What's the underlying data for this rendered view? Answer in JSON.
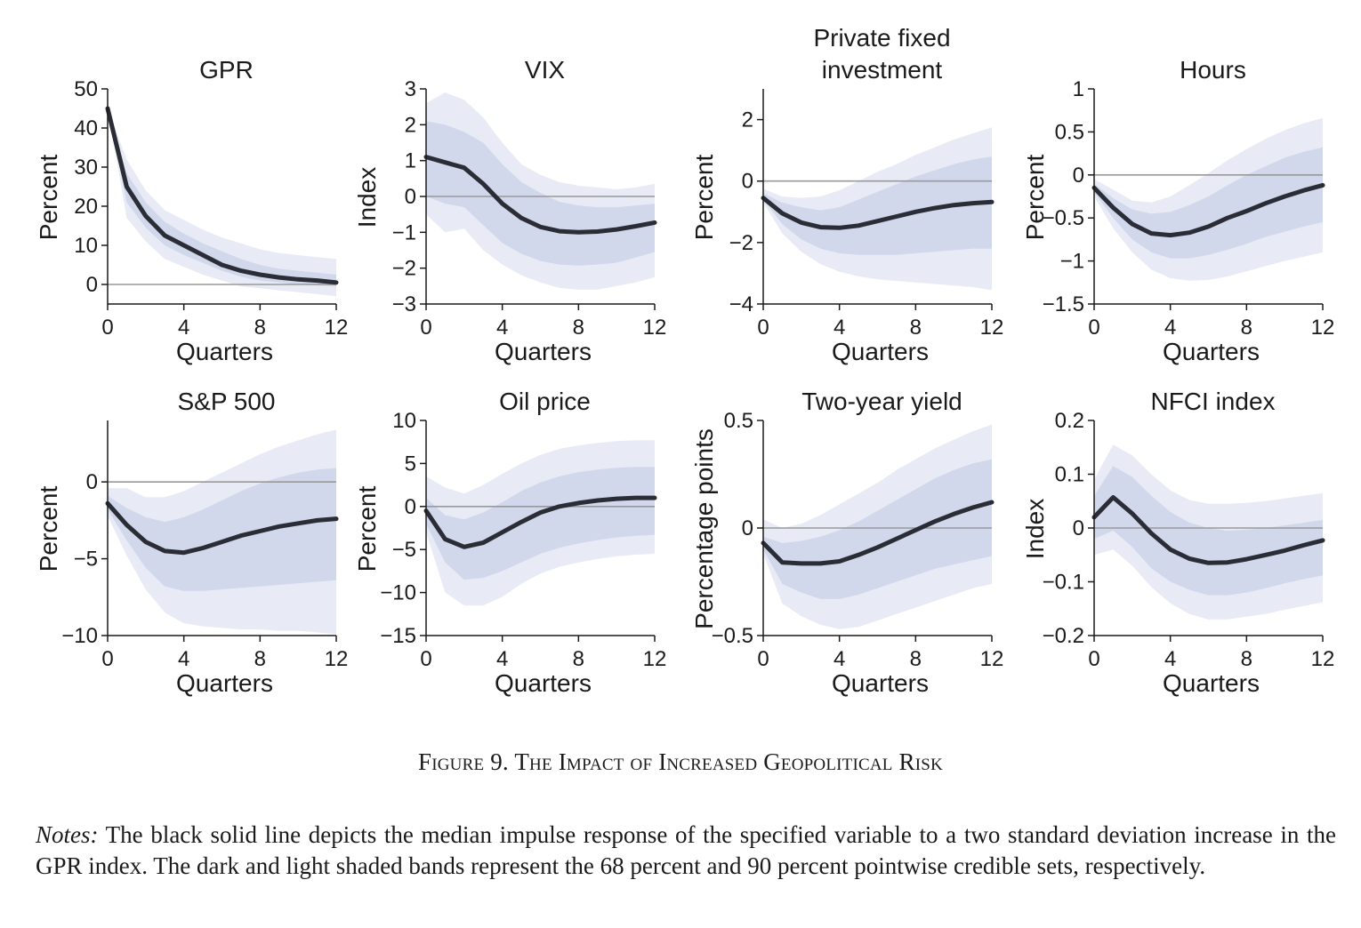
{
  "chart_data": [
    {
      "type": "line",
      "title": [
        "GPR"
      ],
      "ylabel": "Percent",
      "xlabel": "Quarters",
      "xlim": [
        0,
        12
      ],
      "ylim": [
        -5,
        50
      ],
      "xticks": [
        0,
        4,
        8,
        12
      ],
      "yticks": [
        0,
        10,
        20,
        30,
        40,
        50
      ],
      "ytick_labels": [
        "0",
        "10",
        "20",
        "30",
        "40",
        "50"
      ],
      "x": [
        0,
        1,
        2,
        3,
        4,
        5,
        6,
        7,
        8,
        9,
        10,
        11,
        12
      ],
      "median": [
        45,
        25,
        17.5,
        12.5,
        10,
        7.5,
        5,
        3.5,
        2.5,
        1.8,
        1.3,
        1,
        0.5
      ],
      "band68_lower": [
        45,
        21,
        14.5,
        10,
        7.5,
        5.5,
        3.5,
        2,
        1,
        0.5,
        0,
        -0.3,
        -0.5
      ],
      "band68_upper": [
        45,
        28.5,
        21,
        16,
        13,
        10.5,
        8.5,
        6.5,
        5,
        4,
        3.5,
        3,
        2.5
      ],
      "band90_lower": [
        45,
        17,
        11,
        6.5,
        4.5,
        2.5,
        1,
        -0.5,
        -1,
        -1.5,
        -2,
        -2.5,
        -3
      ],
      "band90_upper": [
        45,
        32,
        24,
        19,
        16.5,
        14,
        12,
        10.5,
        9,
        8,
        7.5,
        7,
        6.5
      ],
      "zero_line": true
    },
    {
      "type": "line",
      "title": [
        "VIX"
      ],
      "ylabel": "Index",
      "xlabel": "Quarters",
      "xlim": [
        0,
        12
      ],
      "ylim": [
        -3,
        3
      ],
      "xticks": [
        0,
        4,
        8,
        12
      ],
      "yticks": [
        -3,
        -2,
        -1,
        0,
        1,
        2,
        3
      ],
      "ytick_labels": [
        "−3",
        "−2",
        "−1",
        "0",
        "1",
        "2",
        "3"
      ],
      "x": [
        0,
        1,
        2,
        3,
        4,
        5,
        6,
        7,
        8,
        9,
        10,
        11,
        12
      ],
      "median": [
        1.1,
        0.95,
        0.8,
        0.35,
        -0.2,
        -0.6,
        -0.85,
        -0.97,
        -1.0,
        -0.98,
        -0.92,
        -0.83,
        -0.73
      ],
      "band68_lower": [
        0,
        -0.2,
        -0.3,
        -0.8,
        -1.3,
        -1.6,
        -1.8,
        -1.9,
        -1.93,
        -1.9,
        -1.85,
        -1.7,
        -1.55
      ],
      "band68_upper": [
        2.1,
        2.0,
        1.8,
        1.5,
        0.9,
        0.4,
        0.1,
        -0.15,
        -0.25,
        -0.3,
        -0.3,
        -0.25,
        -0.2
      ],
      "band90_lower": [
        -0.5,
        -1.0,
        -0.9,
        -1.5,
        -1.9,
        -2.2,
        -2.4,
        -2.55,
        -2.6,
        -2.6,
        -2.5,
        -2.4,
        -2.25
      ],
      "band90_upper": [
        2.6,
        2.9,
        2.7,
        2.2,
        1.5,
        0.9,
        0.6,
        0.4,
        0.3,
        0.25,
        0.2,
        0.25,
        0.35
      ],
      "zero_line": true
    },
    {
      "type": "line",
      "title": [
        "Private fixed",
        "investment"
      ],
      "ylabel": "Percent",
      "xlabel": "Quarters",
      "xlim": [
        0,
        12
      ],
      "ylim": [
        -4,
        3
      ],
      "xticks": [
        0,
        4,
        8,
        12
      ],
      "yticks": [
        -4,
        -2,
        0,
        2
      ],
      "ytick_labels": [
        "−4",
        "−2",
        "0",
        "2"
      ],
      "x": [
        0,
        1,
        2,
        3,
        4,
        5,
        6,
        7,
        8,
        9,
        10,
        11,
        12
      ],
      "median": [
        -0.55,
        -1.05,
        -1.35,
        -1.5,
        -1.52,
        -1.45,
        -1.3,
        -1.15,
        -1.0,
        -0.88,
        -0.78,
        -0.72,
        -0.68
      ],
      "band68_lower": [
        -0.6,
        -1.4,
        -1.9,
        -2.2,
        -2.35,
        -2.4,
        -2.4,
        -2.4,
        -2.35,
        -2.3,
        -2.25,
        -2.2,
        -2.2
      ],
      "band68_upper": [
        -0.4,
        -0.7,
        -0.85,
        -0.95,
        -0.85,
        -0.6,
        -0.35,
        -0.1,
        0.15,
        0.35,
        0.55,
        0.7,
        0.8
      ],
      "band90_lower": [
        -0.7,
        -1.7,
        -2.3,
        -2.7,
        -2.95,
        -3.1,
        -3.2,
        -3.25,
        -3.3,
        -3.35,
        -3.4,
        -3.45,
        -3.55
      ],
      "band90_upper": [
        -0.25,
        -0.5,
        -0.55,
        -0.5,
        -0.3,
        0.0,
        0.3,
        0.55,
        0.85,
        1.1,
        1.35,
        1.55,
        1.75
      ],
      "zero_line": true
    },
    {
      "type": "line",
      "title": [
        "Hours"
      ],
      "ylabel": "Percent",
      "xlabel": "Quarters",
      "xlim": [
        0,
        12
      ],
      "ylim": [
        -1.5,
        1
      ],
      "xticks": [
        0,
        4,
        8,
        12
      ],
      "yticks": [
        -1.5,
        -1,
        -0.5,
        0,
        0.5,
        1
      ],
      "ytick_labels": [
        "−1.5",
        "−1",
        "−0.5",
        "0",
        "0.5",
        "1"
      ],
      "x": [
        0,
        1,
        2,
        3,
        4,
        5,
        6,
        7,
        8,
        9,
        10,
        11,
        12
      ],
      "median": [
        -0.15,
        -0.38,
        -0.57,
        -0.68,
        -0.7,
        -0.67,
        -0.6,
        -0.5,
        -0.42,
        -0.33,
        -0.25,
        -0.18,
        -0.12
      ],
      "band68_lower": [
        -0.2,
        -0.5,
        -0.75,
        -0.9,
        -0.97,
        -0.97,
        -0.93,
        -0.87,
        -0.8,
        -0.72,
        -0.66,
        -0.6,
        -0.55
      ],
      "band68_upper": [
        -0.1,
        -0.27,
        -0.4,
        -0.45,
        -0.43,
        -0.35,
        -0.25,
        -0.12,
        0.0,
        0.1,
        0.2,
        0.27,
        0.32
      ],
      "band90_lower": [
        -0.25,
        -0.62,
        -0.9,
        -1.1,
        -1.2,
        -1.23,
        -1.22,
        -1.18,
        -1.12,
        -1.06,
        -1.0,
        -0.95,
        -0.9
      ],
      "band90_upper": [
        -0.05,
        -0.17,
        -0.3,
        -0.32,
        -0.25,
        -0.12,
        0.02,
        0.17,
        0.3,
        0.42,
        0.52,
        0.6,
        0.66
      ],
      "zero_line": true
    },
    {
      "type": "line",
      "title": [
        "S&P 500"
      ],
      "ylabel": "Percent",
      "xlabel": "Quarters",
      "xlim": [
        0,
        12
      ],
      "ylim": [
        -10,
        4
      ],
      "xticks": [
        0,
        4,
        8,
        12
      ],
      "yticks": [
        -10,
        -5,
        0
      ],
      "ytick_labels": [
        "−10",
        "−5",
        "0"
      ],
      "x": [
        0,
        1,
        2,
        3,
        4,
        5,
        6,
        7,
        8,
        9,
        10,
        11,
        12
      ],
      "median": [
        -1.4,
        -2.8,
        -3.9,
        -4.5,
        -4.6,
        -4.3,
        -3.9,
        -3.5,
        -3.2,
        -2.9,
        -2.7,
        -2.5,
        -2.4
      ],
      "band68_lower": [
        -1.8,
        -3.8,
        -5.6,
        -6.8,
        -7.1,
        -7.1,
        -7.0,
        -6.9,
        -6.8,
        -6.7,
        -6.6,
        -6.5,
        -6.4
      ],
      "band68_upper": [
        -0.9,
        -1.7,
        -2.3,
        -2.6,
        -2.3,
        -1.8,
        -1.2,
        -0.6,
        -0.1,
        0.3,
        0.6,
        0.8,
        0.9
      ],
      "band90_lower": [
        -2.2,
        -4.8,
        -7.0,
        -8.5,
        -9.2,
        -9.4,
        -9.5,
        -9.6,
        -9.6,
        -9.7,
        -9.7,
        -9.8,
        -9.9
      ],
      "band90_upper": [
        -0.4,
        -0.4,
        -1.0,
        -1.0,
        -0.6,
        0.0,
        0.6,
        1.2,
        1.8,
        2.3,
        2.7,
        3.1,
        3.4
      ],
      "zero_line": true
    },
    {
      "type": "line",
      "title": [
        "Oil price"
      ],
      "ylabel": "Percent",
      "xlabel": "Quarters",
      "xlim": [
        0,
        12
      ],
      "ylim": [
        -15,
        10
      ],
      "xticks": [
        0,
        4,
        8,
        12
      ],
      "yticks": [
        -15,
        -10,
        -5,
        0,
        5,
        10
      ],
      "ytick_labels": [
        "−15",
        "−10",
        "−5",
        "0",
        "5",
        "10"
      ],
      "x": [
        0,
        1,
        2,
        3,
        4,
        5,
        6,
        7,
        8,
        9,
        10,
        11,
        12
      ],
      "median": [
        -0.5,
        -3.8,
        -4.7,
        -4.2,
        -3.0,
        -1.8,
        -0.7,
        0.0,
        0.4,
        0.7,
        0.9,
        1.0,
        1.0
      ],
      "band68_lower": [
        -2.0,
        -6.5,
        -8.5,
        -8.3,
        -7.5,
        -6.5,
        -5.5,
        -4.8,
        -4.3,
        -3.9,
        -3.6,
        -3.4,
        -3.3
      ],
      "band68_upper": [
        1.0,
        -1.0,
        -1.5,
        -0.7,
        0.5,
        1.8,
        2.8,
        3.5,
        4.0,
        4.3,
        4.5,
        4.6,
        4.6
      ],
      "band90_lower": [
        -3.0,
        -10.0,
        -11.5,
        -11.5,
        -10.5,
        -9.0,
        -7.8,
        -7.0,
        -6.5,
        -6.1,
        -5.8,
        -5.6,
        -5.5
      ],
      "band90_upper": [
        3.5,
        2.2,
        1.5,
        2.5,
        3.8,
        5.0,
        6.0,
        6.7,
        7.1,
        7.4,
        7.6,
        7.7,
        7.7
      ],
      "zero_line": true
    },
    {
      "type": "line",
      "title": [
        "Two-year yield"
      ],
      "ylabel": "Percentage points",
      "xlabel": "Quarters",
      "xlim": [
        0,
        12
      ],
      "ylim": [
        -0.5,
        0.5
      ],
      "xticks": [
        0,
        4,
        8,
        12
      ],
      "yticks": [
        -0.5,
        0,
        0.5
      ],
      "ytick_labels": [
        "−0.5",
        "0",
        "0.5"
      ],
      "x": [
        0,
        1,
        2,
        3,
        4,
        5,
        6,
        7,
        8,
        9,
        10,
        11,
        12
      ],
      "median": [
        -0.07,
        -0.16,
        -0.165,
        -0.165,
        -0.155,
        -0.125,
        -0.09,
        -0.05,
        -0.01,
        0.03,
        0.065,
        0.095,
        0.12
      ],
      "band68_lower": [
        -0.1,
        -0.26,
        -0.3,
        -0.33,
        -0.33,
        -0.31,
        -0.28,
        -0.25,
        -0.22,
        -0.19,
        -0.17,
        -0.15,
        -0.13
      ],
      "band68_upper": [
        -0.04,
        -0.07,
        -0.06,
        -0.04,
        -0.01,
        0.03,
        0.08,
        0.13,
        0.18,
        0.23,
        0.27,
        0.3,
        0.32
      ],
      "band90_lower": [
        -0.12,
        -0.35,
        -0.41,
        -0.45,
        -0.47,
        -0.46,
        -0.43,
        -0.4,
        -0.37,
        -0.34,
        -0.31,
        -0.28,
        -0.26
      ],
      "band90_upper": [
        0.04,
        0.0,
        0.02,
        0.06,
        0.11,
        0.16,
        0.21,
        0.27,
        0.32,
        0.37,
        0.41,
        0.45,
        0.48
      ],
      "zero_line": true
    },
    {
      "type": "line",
      "title": [
        "NFCI index"
      ],
      "ylabel": "Index",
      "xlabel": "Quarters",
      "xlim": [
        0,
        12
      ],
      "ylim": [
        -0.2,
        0.2
      ],
      "xticks": [
        0,
        4,
        8,
        12
      ],
      "yticks": [
        -0.2,
        -0.1,
        0,
        0.1,
        0.2
      ],
      "ytick_labels": [
        "−0.2",
        "−0.1",
        "0",
        "0.1",
        "0.2"
      ],
      "x": [
        0,
        1,
        2,
        3,
        4,
        5,
        6,
        7,
        8,
        9,
        10,
        11,
        12
      ],
      "median": [
        0.02,
        0.057,
        0.027,
        -0.01,
        -0.04,
        -0.057,
        -0.065,
        -0.064,
        -0.058,
        -0.05,
        -0.042,
        -0.032,
        -0.023
      ],
      "band68_lower": [
        -0.02,
        -0.005,
        -0.035,
        -0.075,
        -0.1,
        -0.115,
        -0.125,
        -0.125,
        -0.12,
        -0.112,
        -0.103,
        -0.095,
        -0.088
      ],
      "band68_upper": [
        0.06,
        0.115,
        0.095,
        0.06,
        0.03,
        0.01,
        0.0,
        -0.005,
        -0.003,
        0.0,
        0.005,
        0.01,
        0.015
      ],
      "band90_lower": [
        -0.05,
        -0.04,
        -0.07,
        -0.11,
        -0.14,
        -0.16,
        -0.17,
        -0.17,
        -0.165,
        -0.16,
        -0.152,
        -0.145,
        -0.138
      ],
      "band90_upper": [
        0.09,
        0.155,
        0.135,
        0.1,
        0.07,
        0.052,
        0.045,
        0.045,
        0.047,
        0.05,
        0.055,
        0.06,
        0.065
      ],
      "zero_line": true
    }
  ],
  "colors": {
    "median": "#2b2d36",
    "band68": "#d2d8ec",
    "band90": "#e8ebf5",
    "zero_line": "#999999",
    "axis": "#1a1a1a"
  },
  "caption": "Figure 9. The Impact of Increased Geopolitical Risk",
  "notes": {
    "lead": "Notes:",
    "text": " The black solid line depicts the median impulse response of the specified variable to a two standard deviation increase in the GPR index. The dark and light shaded bands represent the 68 percent and 90 percent pointwise credible sets, respectively."
  }
}
